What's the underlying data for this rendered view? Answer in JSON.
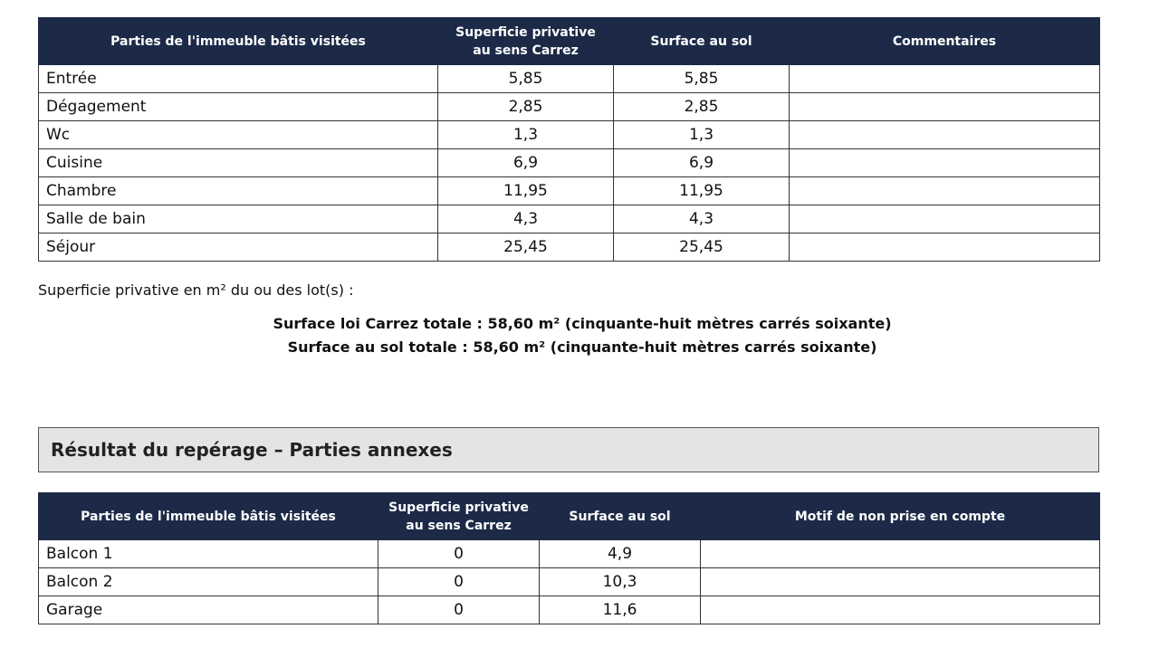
{
  "table1": {
    "headers": [
      "Parties de l'immeuble bâtis visitées",
      "Superficie privative au sens Carrez",
      "Surface au sol",
      "Commentaires"
    ],
    "rows": [
      [
        "Entrée",
        "5,85",
        "5,85"
      ],
      [
        "Dégagement",
        "2,85",
        "2,85"
      ],
      [
        "Wc",
        "1,3",
        "1,3"
      ],
      [
        "Cuisine",
        "6,9",
        "6,9"
      ],
      [
        "Chambre",
        "11,95",
        "11,95"
      ],
      [
        "Salle de bain",
        "4,3",
        "4,3"
      ],
      [
        "Séjour",
        "25,45",
        "25,45"
      ]
    ]
  },
  "summary": {
    "intro": "Superficie privative en m² du ou des lot(s) :",
    "carrez": "Surface loi Carrez totale : 58,60 m² (cinquante-huit mètres carrés soixante)",
    "sol": "Surface au sol totale : 58,60 m² (cinquante-huit mètres carrés soixante)"
  },
  "section": {
    "title": "Résultat du repérage – Parties annexes"
  },
  "table2": {
    "headers": [
      "Parties de l'immeuble bâtis visitées",
      "Superficie privative au sens Carrez",
      "Surface au sol",
      "Motif de non prise en compte"
    ],
    "rows": [
      [
        "Balcon 1",
        "0",
        "4,9"
      ],
      [
        "Balcon 2",
        "0",
        "10,3"
      ],
      [
        "Garage",
        "0",
        "11,6"
      ]
    ]
  }
}
